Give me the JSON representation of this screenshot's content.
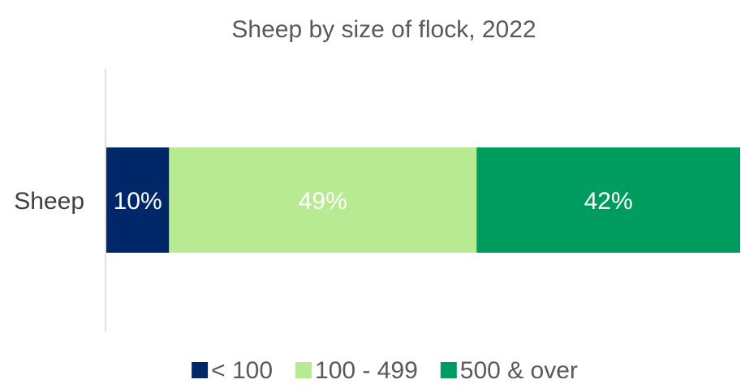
{
  "chart_data": {
    "type": "bar",
    "orientation": "horizontal",
    "stacked": true,
    "title": "Sheep by size of flock, 2022",
    "categories": [
      "Sheep"
    ],
    "series": [
      {
        "name": "< 100",
        "values": [
          10
        ],
        "label": "10%",
        "color": "#002868",
        "label_color": "#ffffff"
      },
      {
        "name": "100 - 499",
        "values": [
          49
        ],
        "label": "49%",
        "color": "#b8ea91",
        "label_color": "#ffffff"
      },
      {
        "name": "500 & over",
        "values": [
          42
        ],
        "label": "42%",
        "color": "#009b5e",
        "label_color": "#ffffff"
      }
    ],
    "xlim": [
      0,
      101
    ],
    "grid": false,
    "legend_position": "bottom"
  }
}
